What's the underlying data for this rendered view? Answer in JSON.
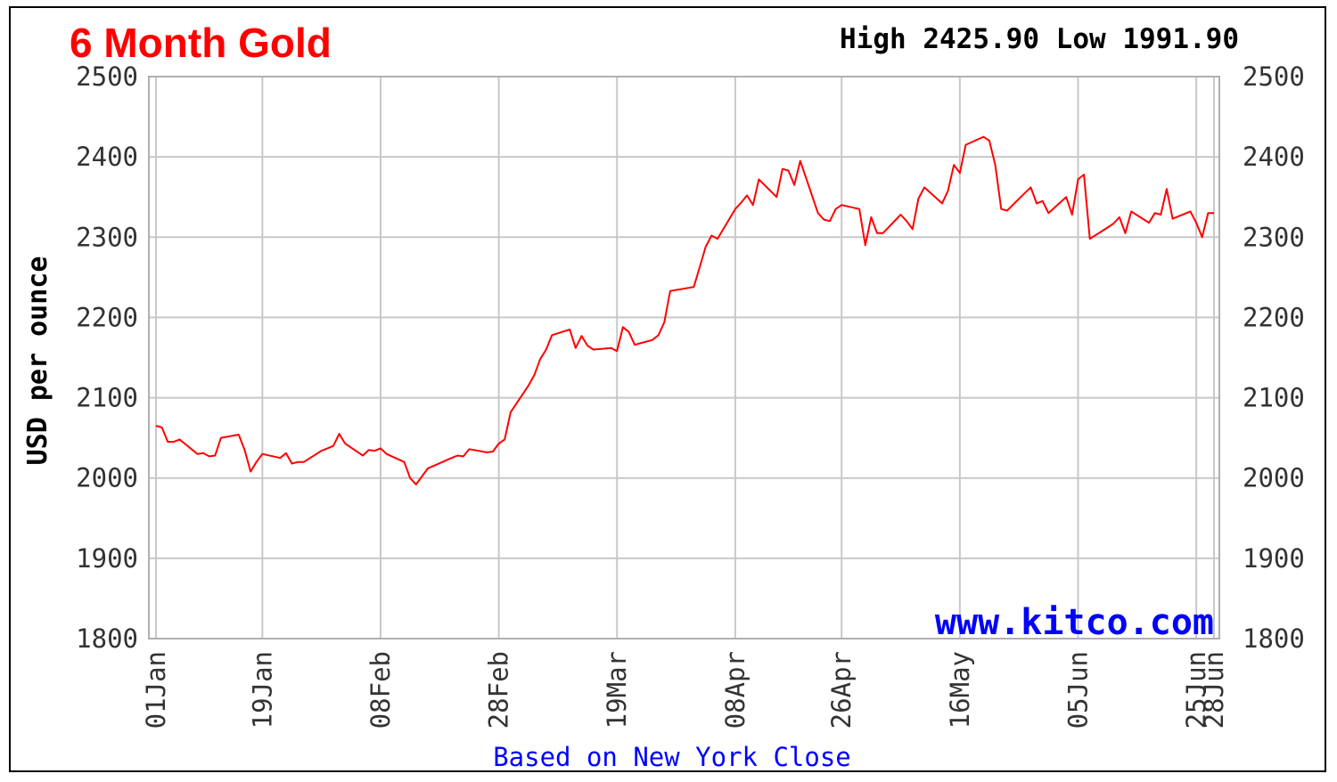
{
  "chart_data": {
    "type": "line",
    "title": "6 Month Gold",
    "high_label": "High",
    "high_value": "2425.90",
    "low_label": "Low",
    "low_value": "1991.90",
    "ylabel": "USD per ounce",
    "xlabel": "Based on New York Close",
    "watermark": "www.kitco.com",
    "ylim": [
      1800,
      2500
    ],
    "y_ticks": [
      1800,
      1900,
      2000,
      2100,
      2200,
      2300,
      2400,
      2500
    ],
    "x_tick_labels": [
      "01Jan",
      "19Jan",
      "08Feb",
      "28Feb",
      "19Mar",
      "08Apr",
      "26Apr",
      "16May",
      "05Jun",
      "25Jun",
      "28Jun"
    ],
    "x_tick_dates": [
      "2024-01-01",
      "2024-01-19",
      "2024-02-08",
      "2024-02-28",
      "2024-03-19",
      "2024-04-08",
      "2024-04-26",
      "2024-05-16",
      "2024-06-05",
      "2024-06-25",
      "2024-06-28"
    ],
    "grid": true,
    "line_color": "#ff0000",
    "title_color": "#ff0000",
    "watermark_color": "#0000ff",
    "xlabel_color": "#0000ff",
    "series": [
      {
        "values": [
          [
            "2024-01-01",
            2065
          ],
          [
            "2024-01-02",
            2063
          ],
          [
            "2024-01-03",
            2045
          ],
          [
            "2024-01-04",
            2045
          ],
          [
            "2024-01-05",
            2048
          ],
          [
            "2024-01-08",
            2030
          ],
          [
            "2024-01-09",
            2031
          ],
          [
            "2024-01-10",
            2027
          ],
          [
            "2024-01-11",
            2028
          ],
          [
            "2024-01-12",
            2050
          ],
          [
            "2024-01-15",
            2054
          ],
          [
            "2024-01-16",
            2035
          ],
          [
            "2024-01-17",
            2008
          ],
          [
            "2024-01-18",
            2020
          ],
          [
            "2024-01-19",
            2030
          ],
          [
            "2024-01-22",
            2025
          ],
          [
            "2024-01-23",
            2031
          ],
          [
            "2024-01-24",
            2018
          ],
          [
            "2024-01-25",
            2020
          ],
          [
            "2024-01-26",
            2020
          ],
          [
            "2024-01-29",
            2034
          ],
          [
            "2024-01-30",
            2037
          ],
          [
            "2024-01-31",
            2040
          ],
          [
            "2024-02-01",
            2055
          ],
          [
            "2024-02-02",
            2043
          ],
          [
            "2024-02-05",
            2028
          ],
          [
            "2024-02-06",
            2035
          ],
          [
            "2024-02-07",
            2034
          ],
          [
            "2024-02-08",
            2037
          ],
          [
            "2024-02-09",
            2030
          ],
          [
            "2024-02-12",
            2020
          ],
          [
            "2024-02-13",
            2000
          ],
          [
            "2024-02-14",
            1992
          ],
          [
            "2024-02-15",
            2002
          ],
          [
            "2024-02-16",
            2012
          ],
          [
            "2024-02-20",
            2025
          ],
          [
            "2024-02-21",
            2028
          ],
          [
            "2024-02-22",
            2027
          ],
          [
            "2024-02-23",
            2036
          ],
          [
            "2024-02-26",
            2032
          ],
          [
            "2024-02-27",
            2033
          ],
          [
            "2024-02-28",
            2043
          ],
          [
            "2024-02-29",
            2048
          ],
          [
            "2024-03-01",
            2082
          ],
          [
            "2024-03-04",
            2115
          ],
          [
            "2024-03-05",
            2128
          ],
          [
            "2024-03-06",
            2148
          ],
          [
            "2024-03-07",
            2160
          ],
          [
            "2024-03-08",
            2178
          ],
          [
            "2024-03-11",
            2185
          ],
          [
            "2024-03-12",
            2162
          ],
          [
            "2024-03-13",
            2177
          ],
          [
            "2024-03-14",
            2165
          ],
          [
            "2024-03-15",
            2160
          ],
          [
            "2024-03-18",
            2162
          ],
          [
            "2024-03-19",
            2158
          ],
          [
            "2024-03-20",
            2188
          ],
          [
            "2024-03-21",
            2182
          ],
          [
            "2024-03-22",
            2166
          ],
          [
            "2024-03-25",
            2172
          ],
          [
            "2024-03-26",
            2178
          ],
          [
            "2024-03-27",
            2194
          ],
          [
            "2024-03-28",
            2233
          ],
          [
            "2024-04-01",
            2238
          ],
          [
            "2024-04-02",
            2263
          ],
          [
            "2024-04-03",
            2288
          ],
          [
            "2024-04-04",
            2302
          ],
          [
            "2024-04-05",
            2298
          ],
          [
            "2024-04-08",
            2335
          ],
          [
            "2024-04-09",
            2343
          ],
          [
            "2024-04-10",
            2352
          ],
          [
            "2024-04-11",
            2340
          ],
          [
            "2024-04-12",
            2372
          ],
          [
            "2024-04-15",
            2350
          ],
          [
            "2024-04-16",
            2385
          ],
          [
            "2024-04-17",
            2383
          ],
          [
            "2024-04-18",
            2365
          ],
          [
            "2024-04-19",
            2395
          ],
          [
            "2024-04-22",
            2330
          ],
          [
            "2024-04-23",
            2322
          ],
          [
            "2024-04-24",
            2320
          ],
          [
            "2024-04-25",
            2335
          ],
          [
            "2024-04-26",
            2340
          ],
          [
            "2024-04-29",
            2335
          ],
          [
            "2024-04-30",
            2290
          ],
          [
            "2024-05-01",
            2325
          ],
          [
            "2024-05-02",
            2305
          ],
          [
            "2024-05-03",
            2305
          ],
          [
            "2024-05-06",
            2328
          ],
          [
            "2024-05-07",
            2320
          ],
          [
            "2024-05-08",
            2310
          ],
          [
            "2024-05-09",
            2348
          ],
          [
            "2024-05-10",
            2362
          ],
          [
            "2024-05-13",
            2342
          ],
          [
            "2024-05-14",
            2358
          ],
          [
            "2024-05-15",
            2390
          ],
          [
            "2024-05-16",
            2380
          ],
          [
            "2024-05-17",
            2415
          ],
          [
            "2024-05-20",
            2425
          ],
          [
            "2024-05-21",
            2420
          ],
          [
            "2024-05-22",
            2390
          ],
          [
            "2024-05-23",
            2335
          ],
          [
            "2024-05-24",
            2333
          ],
          [
            "2024-05-27",
            2355
          ],
          [
            "2024-05-28",
            2362
          ],
          [
            "2024-05-29",
            2342
          ],
          [
            "2024-05-30",
            2345
          ],
          [
            "2024-05-31",
            2330
          ],
          [
            "2024-06-03",
            2350
          ],
          [
            "2024-06-04",
            2328
          ],
          [
            "2024-06-05",
            2372
          ],
          [
            "2024-06-06",
            2378
          ],
          [
            "2024-06-07",
            2298
          ],
          [
            "2024-06-10",
            2312
          ],
          [
            "2024-06-11",
            2317
          ],
          [
            "2024-06-12",
            2325
          ],
          [
            "2024-06-13",
            2305
          ],
          [
            "2024-06-14",
            2332
          ],
          [
            "2024-06-17",
            2318
          ],
          [
            "2024-06-18",
            2330
          ],
          [
            "2024-06-19",
            2328
          ],
          [
            "2024-06-20",
            2360
          ],
          [
            "2024-06-21",
            2323
          ],
          [
            "2024-06-24",
            2332
          ],
          [
            "2024-06-25",
            2318
          ],
          [
            "2024-06-26",
            2300
          ],
          [
            "2024-06-27",
            2330
          ],
          [
            "2024-06-28",
            2330
          ]
        ]
      }
    ]
  }
}
